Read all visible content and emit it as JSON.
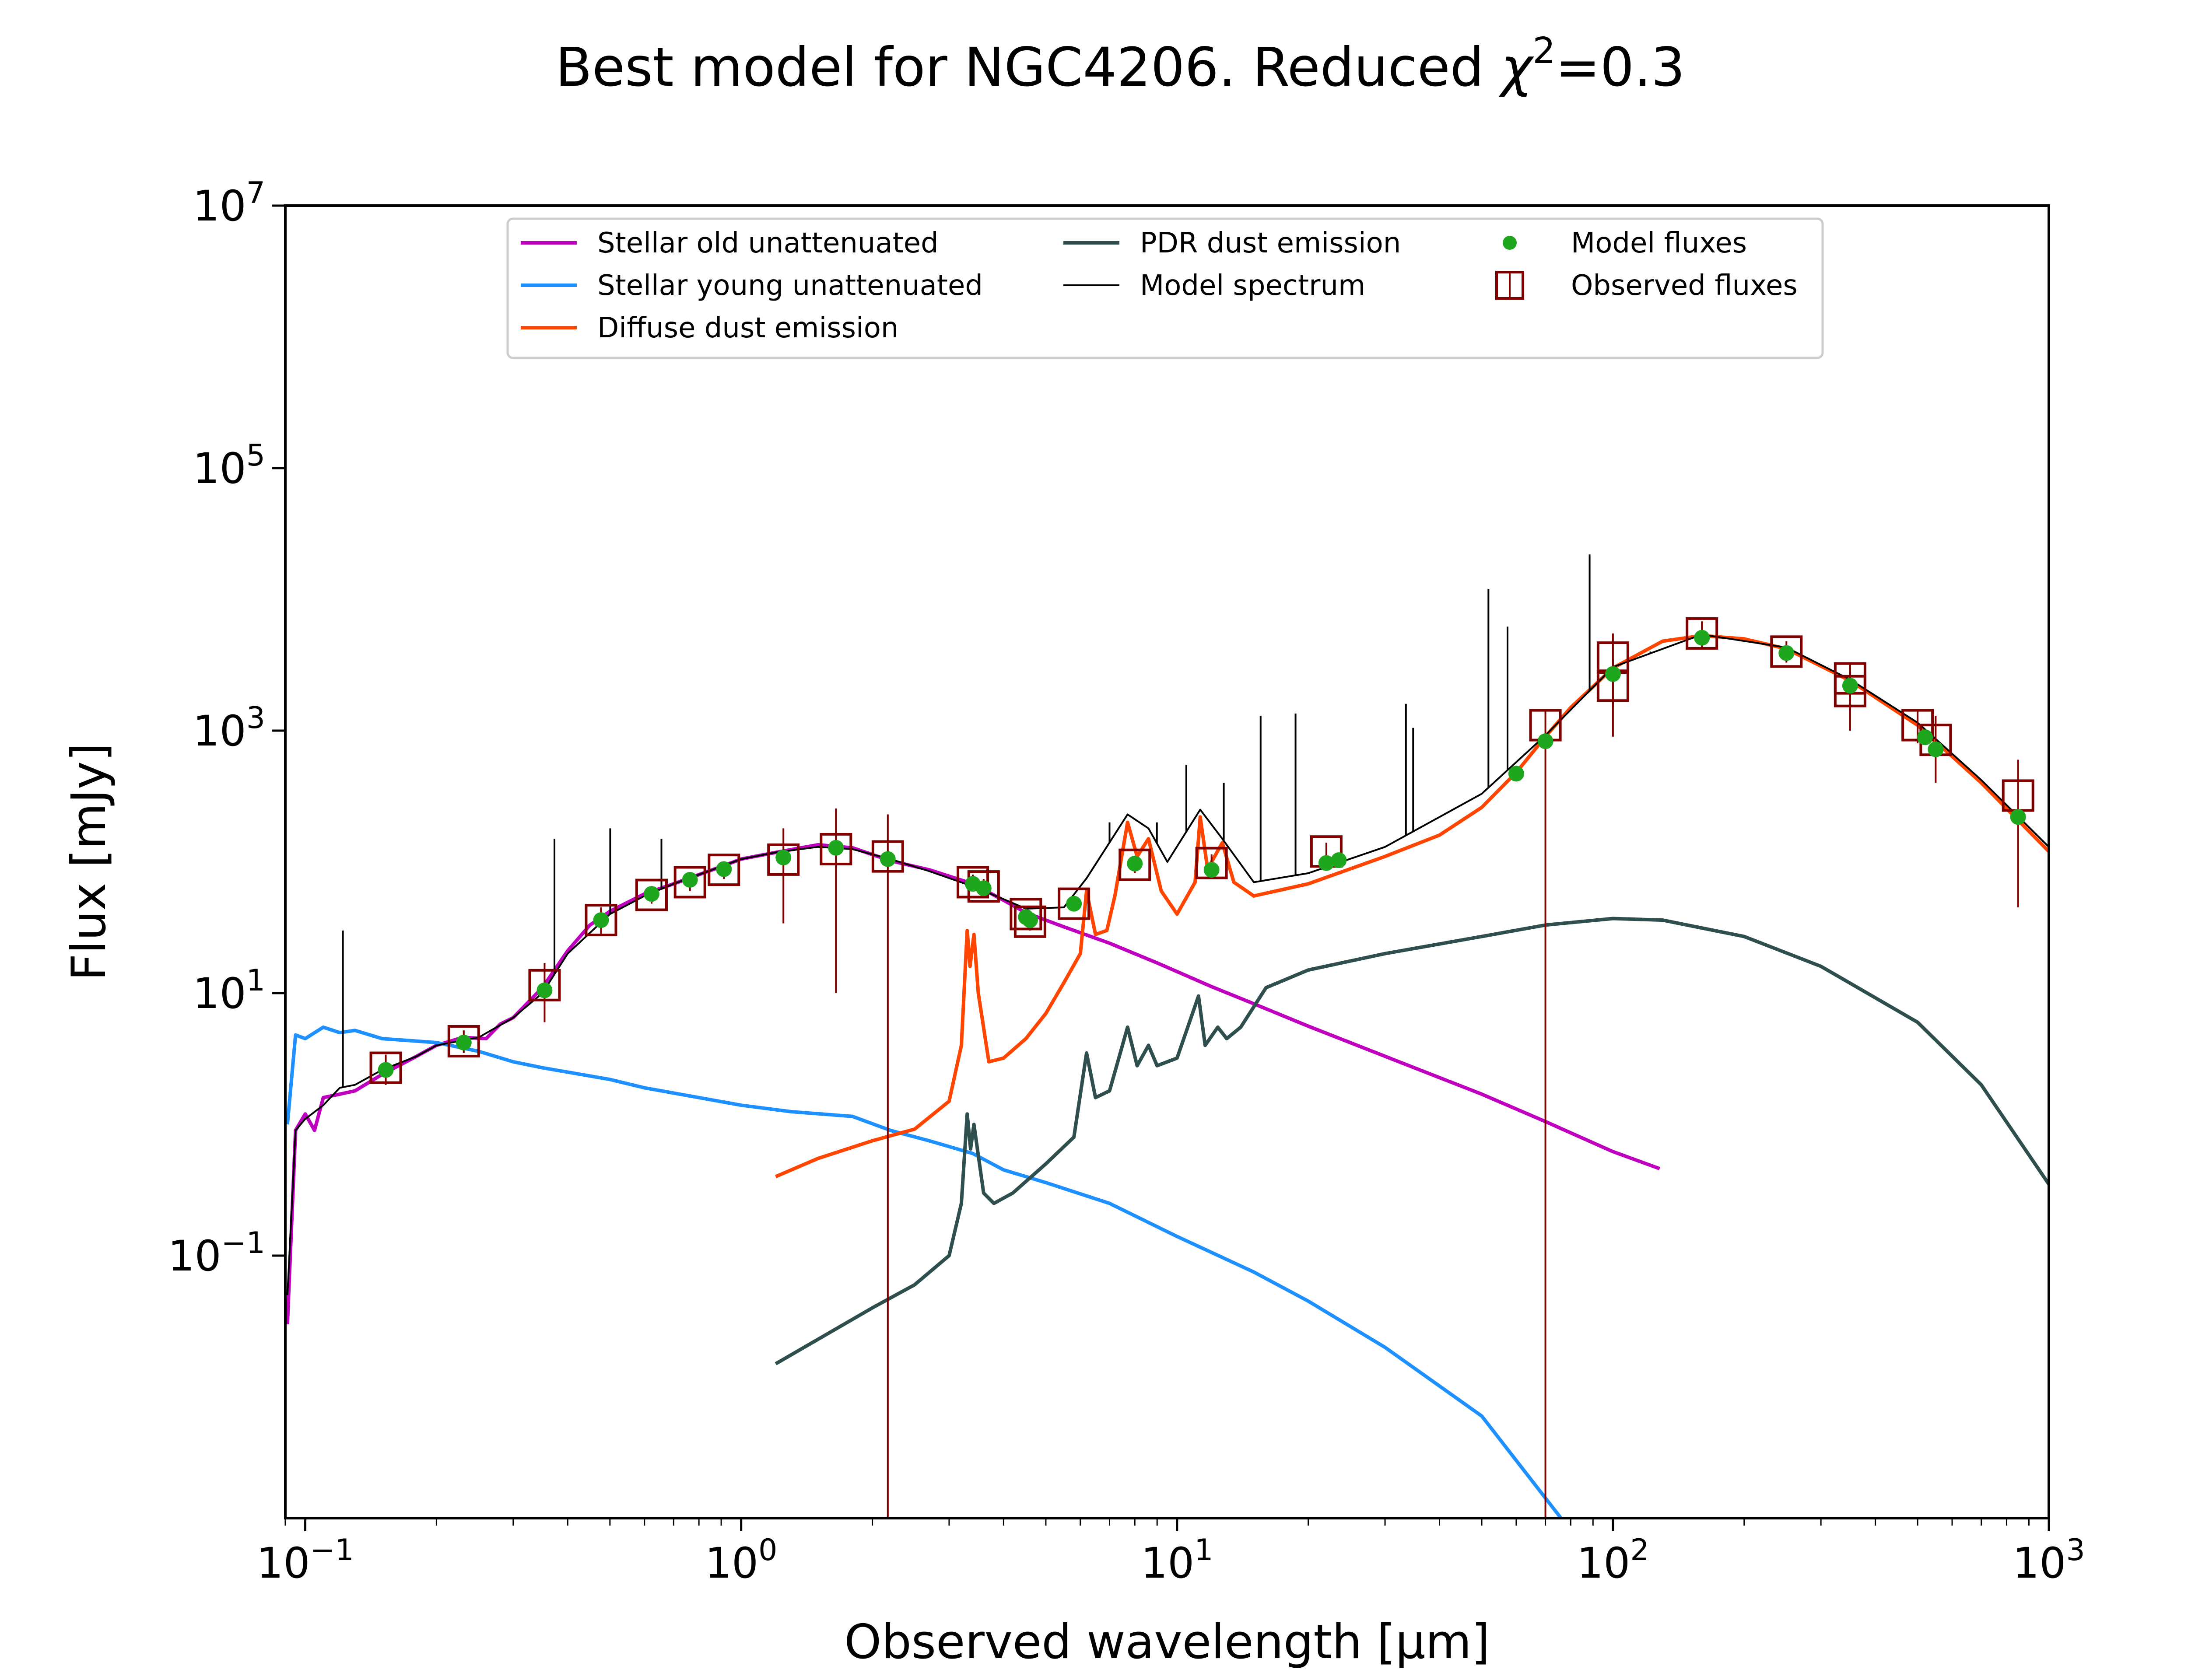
{
  "chart_data": {
    "type": "line",
    "title": "Best model for NGC4206. Reduced χ²=0.3",
    "title_parts": {
      "prefix": "Best model for NGC4206. Reduced ",
      "chi": "χ",
      "sup": "2",
      "suffix": "=0.3"
    },
    "xlabel": "Observed wavelength [μm]",
    "ylabel": "Flux [mJy]",
    "x_scale": "log",
    "y_scale": "log",
    "xlim": [
      0.09,
      1000
    ],
    "ylim": [
      0.001,
      10000000
    ],
    "grid": false,
    "legend_position": "top-center",
    "x_ticks": [
      {
        "value": 0.1,
        "base": "10",
        "exp": "−1"
      },
      {
        "value": 1,
        "base": "10",
        "exp": "0"
      },
      {
        "value": 10,
        "base": "10",
        "exp": "1"
      },
      {
        "value": 100,
        "base": "10",
        "exp": "2"
      },
      {
        "value": 1000,
        "base": "10",
        "exp": "3"
      }
    ],
    "y_ticks": [
      {
        "value": 0.1,
        "base": "10",
        "exp": "−1"
      },
      {
        "value": 10,
        "base": "10",
        "exp": "1"
      },
      {
        "value": 1000,
        "base": "10",
        "exp": "3"
      },
      {
        "value": 100000,
        "base": "10",
        "exp": "5"
      },
      {
        "value": 10000000,
        "base": "10",
        "exp": "7"
      }
    ],
    "legend": [
      {
        "label": "Stellar old unattenuated",
        "type": "line",
        "color": "#bf00bf"
      },
      {
        "label": "Stellar young unattenuated",
        "type": "line",
        "color": "#1e90ff"
      },
      {
        "label": "Diffuse dust emission",
        "type": "line",
        "color": "#ff4500"
      },
      {
        "label": "PDR dust emission",
        "type": "line",
        "color": "#2f4f4f"
      },
      {
        "label": "Model spectrum",
        "type": "thin-line",
        "color": "#000000"
      },
      {
        "label": "Model fluxes",
        "type": "dot",
        "color": "#1fa61f"
      },
      {
        "label": "Observed fluxes",
        "type": "square",
        "color": "#800000"
      }
    ],
    "series": [
      {
        "name": "Stellar old unattenuated",
        "color": "#bf00bf",
        "points": [
          [
            0.091,
            0.03
          ],
          [
            0.095,
            0.9
          ],
          [
            0.1,
            1.2
          ],
          [
            0.105,
            0.9
          ],
          [
            0.11,
            1.6
          ],
          [
            0.12,
            1.7
          ],
          [
            0.13,
            1.8
          ],
          [
            0.15,
            2.4
          ],
          [
            0.18,
            3.3
          ],
          [
            0.2,
            4
          ],
          [
            0.23,
            4.6
          ],
          [
            0.26,
            4.5
          ],
          [
            0.28,
            5.8
          ],
          [
            0.3,
            6.5
          ],
          [
            0.35,
            11
          ],
          [
            0.4,
            21
          ],
          [
            0.45,
            33
          ],
          [
            0.5,
            42
          ],
          [
            0.6,
            57
          ],
          [
            0.7,
            68
          ],
          [
            0.8,
            80
          ],
          [
            0.9,
            92
          ],
          [
            1.0,
            105
          ],
          [
            1.2,
            118
          ],
          [
            1.5,
            135
          ],
          [
            1.8,
            128
          ],
          [
            2.2,
            102
          ],
          [
            2.7,
            87
          ],
          [
            3.4,
            68
          ],
          [
            4.0,
            51
          ],
          [
            4.5,
            41
          ],
          [
            5.5,
            32
          ],
          [
            7,
            24
          ],
          [
            9,
            17
          ],
          [
            12,
            11.2
          ],
          [
            15,
            8.3
          ],
          [
            20,
            5.6
          ],
          [
            30,
            3.3
          ],
          [
            50,
            1.7
          ],
          [
            70,
            1.05
          ],
          [
            100,
            0.62
          ],
          [
            128,
            0.46
          ]
        ]
      },
      {
        "name": "Stellar young unattenuated",
        "color": "#1e90ff",
        "points": [
          [
            0.091,
            1.0
          ],
          [
            0.095,
            4.8
          ],
          [
            0.1,
            4.5
          ],
          [
            0.11,
            5.5
          ],
          [
            0.12,
            5.0
          ],
          [
            0.13,
            5.2
          ],
          [
            0.15,
            4.5
          ],
          [
            0.2,
            4.2
          ],
          [
            0.25,
            3.6
          ],
          [
            0.3,
            3.0
          ],
          [
            0.35,
            2.7
          ],
          [
            0.4,
            2.5
          ],
          [
            0.5,
            2.2
          ],
          [
            0.6,
            1.9
          ],
          [
            0.8,
            1.6
          ],
          [
            1.0,
            1.4
          ],
          [
            1.3,
            1.25
          ],
          [
            1.8,
            1.15
          ],
          [
            2.2,
            0.9
          ],
          [
            2.7,
            0.75
          ],
          [
            3.4,
            0.6
          ],
          [
            4.0,
            0.45
          ],
          [
            5,
            0.36
          ],
          [
            7,
            0.25
          ],
          [
            10,
            0.14
          ],
          [
            15,
            0.075
          ],
          [
            20,
            0.045
          ],
          [
            30,
            0.02
          ],
          [
            50,
            0.006
          ],
          [
            76,
            0.001
          ]
        ]
      },
      {
        "name": "Diffuse dust emission",
        "color": "#ff4500",
        "points": [
          [
            1.2,
            0.4
          ],
          [
            1.5,
            0.55
          ],
          [
            2.0,
            0.75
          ],
          [
            2.5,
            0.92
          ],
          [
            3.0,
            1.5
          ],
          [
            3.2,
            4.0
          ],
          [
            3.3,
            30
          ],
          [
            3.35,
            16
          ],
          [
            3.42,
            28
          ],
          [
            3.5,
            10
          ],
          [
            3.7,
            3.0
          ],
          [
            4.0,
            3.2
          ],
          [
            4.5,
            4.5
          ],
          [
            5.0,
            7
          ],
          [
            5.5,
            12
          ],
          [
            6.0,
            20
          ],
          [
            6.2,
            60
          ],
          [
            6.5,
            28
          ],
          [
            6.9,
            30
          ],
          [
            7.2,
            55
          ],
          [
            7.7,
            200
          ],
          [
            8.1,
            110
          ],
          [
            8.6,
            150
          ],
          [
            9.2,
            60
          ],
          [
            10.0,
            40
          ],
          [
            11.0,
            70
          ],
          [
            11.3,
            220
          ],
          [
            11.8,
            80
          ],
          [
            12.0,
            100
          ],
          [
            12.7,
            140
          ],
          [
            13.5,
            70
          ],
          [
            15,
            55
          ],
          [
            20,
            68
          ],
          [
            30,
            110
          ],
          [
            40,
            160
          ],
          [
            50,
            260
          ],
          [
            60,
            480
          ],
          [
            70,
            900
          ],
          [
            80,
            1500
          ],
          [
            100,
            3000
          ],
          [
            130,
            4800
          ],
          [
            160,
            5300
          ],
          [
            200,
            5000
          ],
          [
            250,
            4200
          ],
          [
            350,
            2400
          ],
          [
            500,
            1100
          ],
          [
            700,
            400
          ],
          [
            1000,
            120
          ]
        ]
      },
      {
        "name": "PDR dust emission",
        "color": "#2f4f4f",
        "points": [
          [
            1.2,
            0.015
          ],
          [
            2.0,
            0.04
          ],
          [
            2.5,
            0.06
          ],
          [
            3.0,
            0.1
          ],
          [
            3.2,
            0.25
          ],
          [
            3.3,
            1.2
          ],
          [
            3.36,
            0.65
          ],
          [
            3.42,
            1.0
          ],
          [
            3.6,
            0.3
          ],
          [
            3.8,
            0.25
          ],
          [
            4.2,
            0.3
          ],
          [
            5.0,
            0.5
          ],
          [
            5.8,
            0.8
          ],
          [
            6.2,
            3.5
          ],
          [
            6.5,
            1.6
          ],
          [
            7.0,
            1.8
          ],
          [
            7.7,
            5.5
          ],
          [
            8.1,
            2.8
          ],
          [
            8.6,
            4.0
          ],
          [
            9.0,
            2.8
          ],
          [
            10.0,
            3.2
          ],
          [
            11.2,
            9.5
          ],
          [
            11.6,
            4.0
          ],
          [
            12.4,
            5.5
          ],
          [
            13.0,
            4.5
          ],
          [
            14,
            5.5
          ],
          [
            16,
            11
          ],
          [
            20,
            15
          ],
          [
            30,
            20
          ],
          [
            50,
            27
          ],
          [
            70,
            33
          ],
          [
            100,
            37
          ],
          [
            130,
            36
          ],
          [
            200,
            27
          ],
          [
            300,
            16
          ],
          [
            500,
            6
          ],
          [
            700,
            2.0
          ],
          [
            1000,
            0.35
          ]
        ]
      },
      {
        "name": "Model spectrum",
        "color": "#000000",
        "points": [
          [
            0.091,
            0.05
          ],
          [
            0.095,
            0.9
          ],
          [
            0.1,
            1.1
          ],
          [
            0.11,
            1.4
          ],
          [
            0.12,
            1.9
          ],
          [
            0.13,
            2.0
          ],
          [
            0.15,
            2.6
          ],
          [
            0.18,
            3.3
          ],
          [
            0.2,
            4.0
          ],
          [
            0.25,
            4.6
          ],
          [
            0.3,
            6.5
          ],
          [
            0.35,
            10
          ],
          [
            0.4,
            20
          ],
          [
            0.5,
            40
          ],
          [
            0.6,
            55
          ],
          [
            0.7,
            68
          ],
          [
            0.8,
            80
          ],
          [
            1.0,
            105
          ],
          [
            1.2,
            118
          ],
          [
            1.5,
            130
          ],
          [
            1.8,
            125
          ],
          [
            2.2,
            105
          ],
          [
            2.7,
            85
          ],
          [
            3.4,
            65
          ],
          [
            4.0,
            52
          ],
          [
            4.5,
            44
          ],
          [
            5.5,
            45
          ],
          [
            6.2,
            75
          ],
          [
            7.7,
            230
          ],
          [
            8.6,
            180
          ],
          [
            9.5,
            100
          ],
          [
            11.3,
            250
          ],
          [
            12.7,
            150
          ],
          [
            15,
            70
          ],
          [
            20,
            82
          ],
          [
            30,
            130
          ],
          [
            50,
            330
          ],
          [
            70,
            920
          ],
          [
            100,
            3050
          ],
          [
            160,
            5400
          ],
          [
            250,
            4300
          ],
          [
            350,
            2450
          ],
          [
            500,
            1150
          ],
          [
            700,
            420
          ],
          [
            1000,
            130
          ]
        ],
        "emission_lines": [
          [
            0.122,
            30
          ],
          [
            0.373,
            150
          ],
          [
            0.5007,
            180
          ],
          [
            0.6563,
            150
          ],
          [
            7.0,
            200
          ],
          [
            8.99,
            200
          ],
          [
            10.5,
            550
          ],
          [
            12.8,
            400
          ],
          [
            15.55,
            1300
          ],
          [
            18.7,
            1350
          ],
          [
            33.5,
            1600
          ],
          [
            34.8,
            1050
          ],
          [
            51.8,
            12000
          ],
          [
            57.3,
            6200
          ],
          [
            88.4,
            22000
          ],
          [
            121.9,
            4000
          ]
        ]
      }
    ],
    "model_fluxes": [
      [
        0.153,
        2.6
      ],
      [
        0.231,
        4.2
      ],
      [
        0.354,
        10.5
      ],
      [
        0.477,
        36
      ],
      [
        0.623,
        57
      ],
      [
        0.763,
        73
      ],
      [
        0.913,
        88
      ],
      [
        1.25,
        108
      ],
      [
        1.65,
        128
      ],
      [
        2.17,
        105
      ],
      [
        3.4,
        68
      ],
      [
        3.6,
        63
      ],
      [
        4.5,
        38
      ],
      [
        4.6,
        36
      ],
      [
        5.8,
        48
      ],
      [
        8.0,
        97
      ],
      [
        12,
        87
      ],
      [
        22,
        98
      ],
      [
        23.5,
        103
      ],
      [
        60,
        470
      ],
      [
        70,
        830
      ],
      [
        100,
        2700
      ],
      [
        160,
        5100
      ],
      [
        250,
        3900
      ],
      [
        350,
        2200
      ],
      [
        520,
        890
      ],
      [
        550,
        720
      ],
      [
        850,
        220
      ]
    ],
    "observed_fluxes": [
      {
        "x": 0.153,
        "y": 2.7,
        "lo": 2.0,
        "hi": 3.4
      },
      {
        "x": 0.231,
        "y": 4.3,
        "lo": 3.5,
        "hi": 5.2
      },
      {
        "x": 0.354,
        "y": 11.5,
        "lo": 6,
        "hi": 17
      },
      {
        "x": 0.477,
        "y": 36,
        "lo": 28,
        "hi": 45
      },
      {
        "x": 0.623,
        "y": 56,
        "lo": 48,
        "hi": 64
      },
      {
        "x": 0.763,
        "y": 70,
        "lo": 60,
        "hi": 82
      },
      {
        "x": 0.913,
        "y": 87,
        "lo": 74,
        "hi": 101
      },
      {
        "x": 1.25,
        "y": 104,
        "lo": 34,
        "hi": 180
      },
      {
        "x": 1.65,
        "y": 125,
        "lo": 10,
        "hi": 255
      },
      {
        "x": 2.17,
        "y": 110,
        "lo": 0.001,
        "hi": 230
      },
      {
        "x": 3.4,
        "y": 70,
        "lo": 60,
        "hi": 80
      },
      {
        "x": 3.6,
        "y": 65,
        "lo": 56,
        "hi": 74
      },
      {
        "x": 4.5,
        "y": 40,
        "lo": 35,
        "hi": 45
      },
      {
        "x": 4.6,
        "y": 35,
        "lo": 30,
        "hi": 40
      },
      {
        "x": 5.8,
        "y": 48,
        "lo": 42,
        "hi": 54
      },
      {
        "x": 8.0,
        "y": 95,
        "lo": 82,
        "hi": 108
      },
      {
        "x": 12,
        "y": 98,
        "lo": 82,
        "hi": 114
      },
      {
        "x": 22,
        "y": 120,
        "lo": 100,
        "hi": 140
      },
      {
        "x": 70,
        "y": 1100,
        "lo": 0.001,
        "hi": 1400
      },
      {
        "x": 100,
        "y": 3600,
        "lo": 1500,
        "hi": 5500
      },
      {
        "x": 100,
        "y": 2200,
        "lo": 900,
        "hi": 3500
      },
      {
        "x": 160,
        "y": 5500,
        "lo": 4300,
        "hi": 6800
      },
      {
        "x": 250,
        "y": 4000,
        "lo": 3300,
        "hi": 4800
      },
      {
        "x": 350,
        "y": 2500,
        "lo": 1700,
        "hi": 3300
      },
      {
        "x": 350,
        "y": 2000,
        "lo": 1000,
        "hi": 3000
      },
      {
        "x": 500,
        "y": 1100,
        "lo": 800,
        "hi": 1400
      },
      {
        "x": 550,
        "y": 850,
        "lo": 400,
        "hi": 1300
      },
      {
        "x": 850,
        "y": 320,
        "lo": 45,
        "hi": 600
      }
    ]
  }
}
